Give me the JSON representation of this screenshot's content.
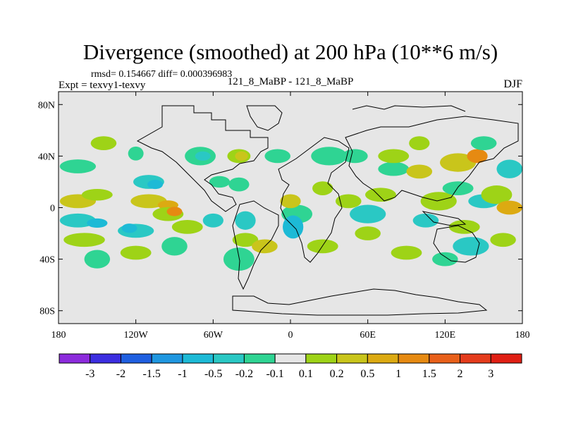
{
  "chart_data": {
    "type": "filled-contour-map",
    "title": "Divergence (smoothed) at 200 hPa (10**6 m/s)",
    "stats": "rmsd= 0.154667 diff= 0.000396983",
    "expt": "Expt = texvy1-texvy",
    "subtitle": "121_8_MaBP - 121_8_MaBP",
    "season": "DJF",
    "units": "10**6 m/s",
    "x_axis": {
      "range": [
        -180,
        180
      ],
      "ticks": [
        -180,
        -120,
        -60,
        0,
        60,
        120,
        180
      ],
      "tick_labels": [
        "180",
        "120W",
        "60W",
        "0",
        "60E",
        "120E",
        "180"
      ]
    },
    "y_axis": {
      "range": [
        -90,
        90
      ],
      "ticks": [
        80,
        40,
        0,
        -40,
        -80
      ],
      "tick_labels": [
        "80N",
        "40N",
        "0",
        "40S",
        "80S"
      ]
    },
    "colorbar": {
      "levels": [
        "-3",
        "-2",
        "-1.5",
        "-1",
        "-0.5",
        "-0.2",
        "-0.1",
        "0.1",
        "0.2",
        "0.5",
        "1",
        "1.5",
        "2",
        "3"
      ],
      "colors": [
        "#8c2bdc",
        "#3c2ee0",
        "#1f5fe0",
        "#1f97e0",
        "#1dbad6",
        "#2ac8c4",
        "#2fd493",
        "#e6e6e6",
        "#9ed317",
        "#c9c51b",
        "#dcaa12",
        "#e68a12",
        "#e8601a",
        "#e43c1c",
        "#e01f14"
      ]
    },
    "blobs": [
      {
        "lon": -165,
        "lat": 32,
        "rx": 14,
        "ry": 3,
        "lvl": 6
      },
      {
        "lon": -145,
        "lat": 50,
        "rx": 10,
        "ry": 3,
        "lvl": 8
      },
      {
        "lon": -110,
        "lat": 20,
        "rx": 12,
        "ry": 3,
        "lvl": 5
      },
      {
        "lon": -105,
        "lat": 18,
        "rx": 6,
        "ry": 2,
        "lvl": 4
      },
      {
        "lon": -120,
        "lat": 42,
        "rx": 6,
        "ry": 3,
        "lvl": 6
      },
      {
        "lon": -70,
        "lat": 40,
        "rx": 12,
        "ry": 4,
        "lvl": 6
      },
      {
        "lon": -68,
        "lat": 40,
        "rx": 6,
        "ry": 2,
        "lvl": 5
      },
      {
        "lon": -40,
        "lat": 40,
        "rx": 9,
        "ry": 3,
        "lvl": 8
      },
      {
        "lon": -38,
        "lat": 40,
        "rx": 5,
        "ry": 2,
        "lvl": 9
      },
      {
        "lon": -10,
        "lat": 40,
        "rx": 10,
        "ry": 3,
        "lvl": 6
      },
      {
        "lon": -55,
        "lat": 20,
        "rx": 8,
        "ry": 2.5,
        "lvl": 6
      },
      {
        "lon": -40,
        "lat": 18,
        "rx": 8,
        "ry": 3,
        "lvl": 6
      },
      {
        "lon": -165,
        "lat": 5,
        "rx": 14,
        "ry": 3,
        "lvl": 9
      },
      {
        "lon": -150,
        "lat": 10,
        "rx": 12,
        "ry": 2.5,
        "lvl": 8
      },
      {
        "lon": -110,
        "lat": 5,
        "rx": 14,
        "ry": 3,
        "lvl": 9
      },
      {
        "lon": -95,
        "lat": 2,
        "rx": 8,
        "ry": 2,
        "lvl": 10
      },
      {
        "lon": -165,
        "lat": -10,
        "rx": 14,
        "ry": 3,
        "lvl": 5
      },
      {
        "lon": -150,
        "lat": -12,
        "rx": 8,
        "ry": 2,
        "lvl": 4
      },
      {
        "lon": -120,
        "lat": -18,
        "rx": 14,
        "ry": 3,
        "lvl": 5
      },
      {
        "lon": -125,
        "lat": -16,
        "rx": 6,
        "ry": 2,
        "lvl": 4
      },
      {
        "lon": -95,
        "lat": -5,
        "rx": 12,
        "ry": 3,
        "lvl": 8
      },
      {
        "lon": -90,
        "lat": -3,
        "rx": 6,
        "ry": 2,
        "lvl": 11
      },
      {
        "lon": -80,
        "lat": -15,
        "rx": 12,
        "ry": 3,
        "lvl": 8
      },
      {
        "lon": -60,
        "lat": -10,
        "rx": 8,
        "ry": 3,
        "lvl": 5
      },
      {
        "lon": -160,
        "lat": -25,
        "rx": 16,
        "ry": 3,
        "lvl": 8
      },
      {
        "lon": -120,
        "lat": -35,
        "rx": 12,
        "ry": 3,
        "lvl": 8
      },
      {
        "lon": -90,
        "lat": -30,
        "rx": 10,
        "ry": 4,
        "lvl": 6
      },
      {
        "lon": -150,
        "lat": -40,
        "rx": 10,
        "ry": 4,
        "lvl": 6
      },
      {
        "lon": -35,
        "lat": -10,
        "rx": 8,
        "ry": 4,
        "lvl": 5
      },
      {
        "lon": -35,
        "lat": -25,
        "rx": 10,
        "ry": 3,
        "lvl": 8
      },
      {
        "lon": -20,
        "lat": -30,
        "rx": 10,
        "ry": 3,
        "lvl": 9
      },
      {
        "lon": -40,
        "lat": -40,
        "rx": 12,
        "ry": 5,
        "lvl": 6
      },
      {
        "lon": 5,
        "lat": -5,
        "rx": 12,
        "ry": 4,
        "lvl": 6
      },
      {
        "lon": 2,
        "lat": -15,
        "rx": 8,
        "ry": 5,
        "lvl": 4
      },
      {
        "lon": 0,
        "lat": 5,
        "rx": 8,
        "ry": 3,
        "lvl": 9
      },
      {
        "lon": 25,
        "lat": -30,
        "rx": 12,
        "ry": 3,
        "lvl": 8
      },
      {
        "lon": 25,
        "lat": 15,
        "rx": 8,
        "ry": 3,
        "lvl": 8
      },
      {
        "lon": 30,
        "lat": 40,
        "rx": 14,
        "ry": 4,
        "lvl": 6
      },
      {
        "lon": 50,
        "lat": 40,
        "rx": 10,
        "ry": 3,
        "lvl": 6
      },
      {
        "lon": 45,
        "lat": 5,
        "rx": 10,
        "ry": 3,
        "lvl": 8
      },
      {
        "lon": 60,
        "lat": -5,
        "rx": 14,
        "ry": 4,
        "lvl": 5
      },
      {
        "lon": 70,
        "lat": 10,
        "rx": 12,
        "ry": 3,
        "lvl": 8
      },
      {
        "lon": 60,
        "lat": -20,
        "rx": 10,
        "ry": 3,
        "lvl": 8
      },
      {
        "lon": 80,
        "lat": 30,
        "rx": 12,
        "ry": 3,
        "lvl": 6
      },
      {
        "lon": 80,
        "lat": 40,
        "rx": 12,
        "ry": 3,
        "lvl": 8
      },
      {
        "lon": 100,
        "lat": 50,
        "rx": 8,
        "ry": 3,
        "lvl": 8
      },
      {
        "lon": 100,
        "lat": 28,
        "rx": 10,
        "ry": 3,
        "lvl": 9
      },
      {
        "lon": 115,
        "lat": 5,
        "rx": 14,
        "ry": 4,
        "lvl": 8
      },
      {
        "lon": 105,
        "lat": -10,
        "rx": 10,
        "ry": 3,
        "lvl": 5
      },
      {
        "lon": 130,
        "lat": 35,
        "rx": 14,
        "ry": 4,
        "lvl": 9
      },
      {
        "lon": 145,
        "lat": 40,
        "rx": 8,
        "ry": 3,
        "lvl": 11
      },
      {
        "lon": 130,
        "lat": 15,
        "rx": 12,
        "ry": 3,
        "lvl": 6
      },
      {
        "lon": 150,
        "lat": 5,
        "rx": 12,
        "ry": 3,
        "lvl": 5
      },
      {
        "lon": 160,
        "lat": 10,
        "rx": 12,
        "ry": 4,
        "lvl": 8
      },
      {
        "lon": 170,
        "lat": 0,
        "rx": 10,
        "ry": 3,
        "lvl": 10
      },
      {
        "lon": 135,
        "lat": -15,
        "rx": 12,
        "ry": 3,
        "lvl": 8
      },
      {
        "lon": 140,
        "lat": -30,
        "rx": 14,
        "ry": 4,
        "lvl": 5
      },
      {
        "lon": 165,
        "lat": -25,
        "rx": 10,
        "ry": 3,
        "lvl": 8
      },
      {
        "lon": 90,
        "lat": -35,
        "rx": 12,
        "ry": 3,
        "lvl": 8
      },
      {
        "lon": 120,
        "lat": -40,
        "rx": 10,
        "ry": 3,
        "lvl": 6
      },
      {
        "lon": 150,
        "lat": 50,
        "rx": 10,
        "ry": 3,
        "lvl": 6
      },
      {
        "lon": 170,
        "lat": 30,
        "rx": 10,
        "ry": 4,
        "lvl": 5
      }
    ]
  }
}
